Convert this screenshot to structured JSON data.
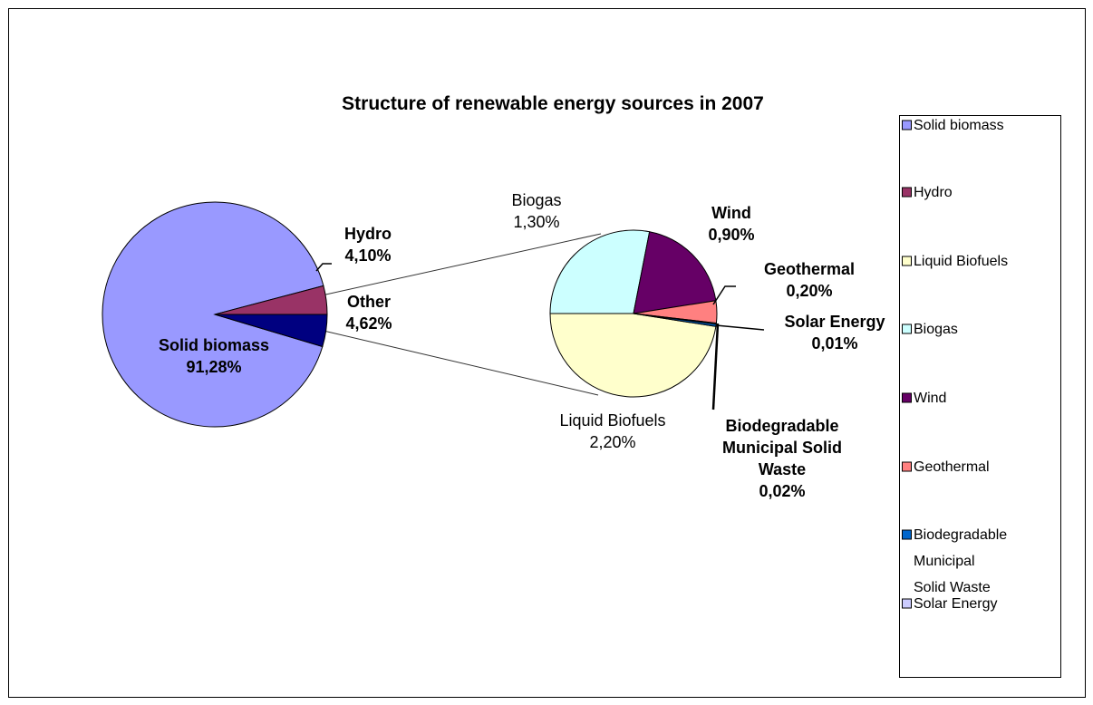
{
  "chart_data": {
    "type": "pie",
    "title": "Structure of renewable energy sources in 2007",
    "main_slices": [
      {
        "label": "Solid biomass",
        "value": 91.28,
        "value_label": "91,28%",
        "color": "#9999ff"
      },
      {
        "label": "Hydro",
        "value": 4.1,
        "value_label": "4,10%",
        "color": "#993366"
      },
      {
        "label": "Other",
        "value": 4.62,
        "value_label": "4,62%",
        "color": "#000080"
      }
    ],
    "breakdown_slices": [
      {
        "label": "Liquid Biofuels",
        "value": 2.2,
        "value_label": "2,20%",
        "color": "#ffffcc"
      },
      {
        "label": "Biogas",
        "value": 1.3,
        "value_label": "1,30%",
        "color": "#ccffff"
      },
      {
        "label": "Wind",
        "value": 0.9,
        "value_label": "0,90%",
        "color": "#660066"
      },
      {
        "label": "Geothermal",
        "value": 0.2,
        "value_label": "0,20%",
        "color": "#ff8080"
      },
      {
        "label": "Solar Energy",
        "value": 0.01,
        "value_label": "0,01%",
        "color": "#ccccff"
      },
      {
        "label": "Biodegradable Municipal Solid Waste",
        "value": 0.02,
        "value_label": "0,02%",
        "color": "#0066cc"
      }
    ],
    "legend": {
      "position": "right",
      "entries": [
        {
          "label": "Solid biomass",
          "color": "#9999ff"
        },
        {
          "label": "Hydro",
          "color": "#993366"
        },
        {
          "label": "Liquid Biofuels",
          "color": "#ffffcc"
        },
        {
          "label": "Biogas",
          "color": "#ccffff"
        },
        {
          "label": "Wind",
          "color": "#660066"
        },
        {
          "label": "Geothermal",
          "color": "#ff8080"
        },
        {
          "label": "Biodegradable Municipal Solid Waste",
          "color": "#0066cc"
        },
        {
          "label": "Solar Energy",
          "color": "#ccccff"
        }
      ]
    }
  }
}
